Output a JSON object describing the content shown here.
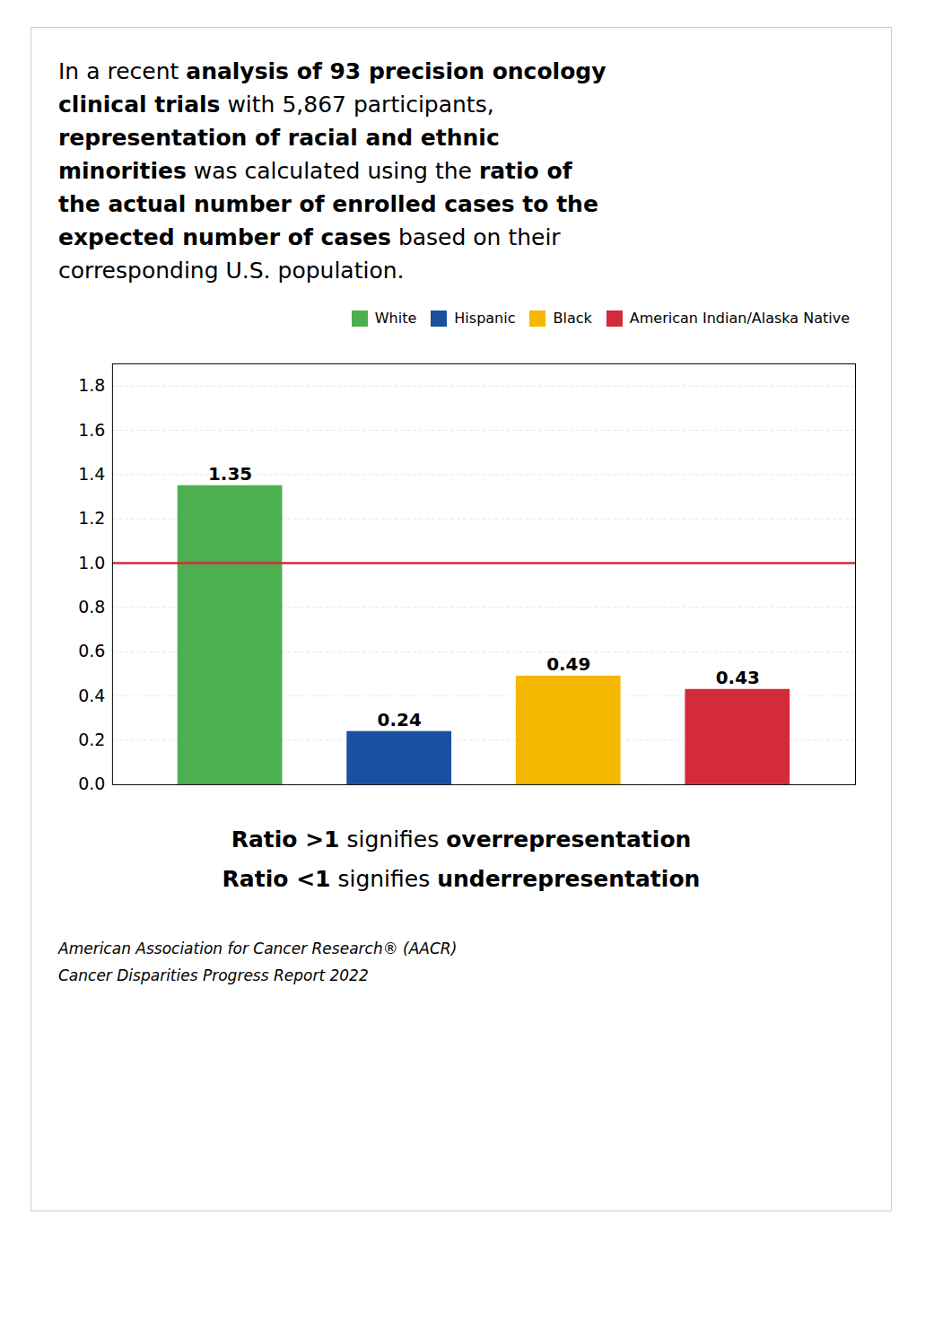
{
  "chart_data": {
    "type": "bar",
    "categories": [
      "White",
      "Hispanic",
      "Black",
      "American Indian/Alaska Native"
    ],
    "values": [
      1.35,
      0.24,
      0.49,
      0.43
    ],
    "colors": [
      "#4CAF50",
      "#1B4FA0",
      "#F5B800",
      "#D42B3A"
    ],
    "ylim": [
      0,
      1.9
    ],
    "yticks": [
      {
        "value": 0,
        "label": "0.0"
      },
      0.2,
      0.4,
      0.6,
      0.8,
      {
        "value": 1,
        "label": "1.0"
      },
      1.2,
      1.4,
      1.6,
      1.8
    ],
    "grid": true,
    "data_labels": true,
    "tick_labels": "y",
    "legend": "top-right",
    "reference_line": {
      "value": 1.0,
      "color": "#D42B3A"
    },
    "intro": [
      [
        {
          "text": "In a recent ",
          "bold": false
        },
        {
          "text": "analysis of 93 precision oncology",
          "bold": true
        }
      ],
      [
        {
          "text": "clinical trials",
          "bold": true
        },
        {
          "text": " with 5,867 participants,",
          "bold": false
        }
      ],
      [
        {
          "text": "representation of racial and ethnic",
          "bold": true
        }
      ],
      [
        {
          "text": "minorities",
          "bold": true
        },
        {
          "text": " was calculated using the ",
          "bold": false
        },
        {
          "text": "ratio of",
          "bold": true
        }
      ],
      [
        {
          "text": "the actual number of enrolled cases to the",
          "bold": true
        }
      ],
      [
        {
          "text": "expected number of cases",
          "bold": true
        },
        {
          "text": " based on their",
          "bold": false
        }
      ],
      [
        {
          "text": "corresponding U.S. population.",
          "bold": false
        }
      ]
    ],
    "notes": [
      [
        {
          "text": "Ratio >1",
          "bold": true
        },
        {
          "text": " signifies ",
          "bold": false
        },
        {
          "text": "overrepresentation",
          "bold": true
        }
      ],
      [
        {
          "text": "Ratio <1",
          "bold": true
        },
        {
          "text": " signifies ",
          "bold": false
        },
        {
          "text": "underrepresentation",
          "bold": true
        }
      ]
    ],
    "footer": [
      "American Association for Cancer Research® (AACR)",
      "Cancer Disparities Progress Report 2022"
    ]
  }
}
